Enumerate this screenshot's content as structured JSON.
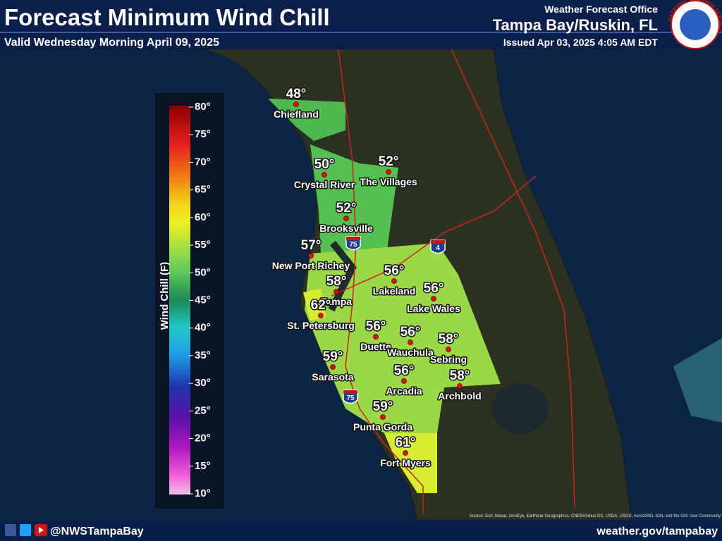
{
  "header": {
    "title": "Forecast Minimum Wind Chill",
    "subtitle": "Valid Wednesday Morning April 09, 2025",
    "office": "Weather Forecast Office",
    "location": "Tampa Bay/Ruskin, FL",
    "issued": "Issued Apr 03, 2025 4:05 AM EDT",
    "logo_text": "NATIONAL WEATHER SERVICE"
  },
  "legend": {
    "title": "Wind Chill (F)",
    "labels": [
      "80°",
      "75°",
      "70°",
      "65°",
      "60°",
      "55°",
      "50°",
      "45°",
      "40°",
      "35°",
      "30°",
      "25°",
      "20°",
      "15°",
      "10°"
    ]
  },
  "cities": [
    {
      "name": "Chiefland",
      "temp": "48°"
    },
    {
      "name": "Crystal River",
      "temp": "50°"
    },
    {
      "name": "The Villages",
      "temp": "52°"
    },
    {
      "name": "Brooksville",
      "temp": "52°"
    },
    {
      "name": "New Port Richey",
      "temp": "57°"
    },
    {
      "name": "Tampa",
      "temp": "58°"
    },
    {
      "name": "St. Petersburg",
      "temp": "62°"
    },
    {
      "name": "Lakeland",
      "temp": "56°"
    },
    {
      "name": "Lake Wales",
      "temp": "56°"
    },
    {
      "name": "Duette",
      "temp": "56°"
    },
    {
      "name": "Wauchula",
      "temp": "56°"
    },
    {
      "name": "Sebring",
      "temp": "58°"
    },
    {
      "name": "Sarasota",
      "temp": "59°"
    },
    {
      "name": "Arcadia",
      "temp": "56°"
    },
    {
      "name": "Archbold",
      "temp": "58°"
    },
    {
      "name": "Punta Gorda",
      "temp": "59°"
    },
    {
      "name": "Fort Myers",
      "temp": "61°"
    }
  ],
  "highways": [
    "75",
    "4",
    "75"
  ],
  "attribution": "Source: Esri, Maxar, GeoEye, Earthstar Geographics, CNES/Airbus DS, USDA, USGS, AeroGRID, IGN, and the GIS User Community",
  "footer": {
    "social": "@NWSTampaBay",
    "website": "weather.gov/tampabay"
  }
}
